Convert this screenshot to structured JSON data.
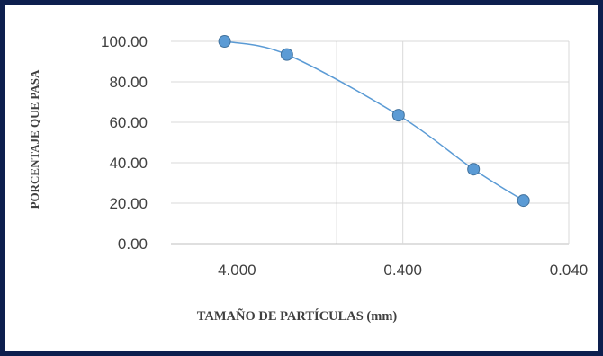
{
  "chart_data": {
    "type": "line",
    "xlabel": "TAMAÑO DE PARTÍCULAS  (mm)",
    "ylabel": "PORCENTAJE QUE PASA",
    "x_scale": "log-reversed",
    "xlim": [
      10,
      0.04
    ],
    "ylim": [
      0,
      100
    ],
    "x_ticks": [
      "4.000",
      "0.400",
      "0.040"
    ],
    "y_ticks": [
      "0.00",
      "20.00",
      "40.00",
      "60.00",
      "80.00",
      "100.00"
    ],
    "series": [
      {
        "x": [
          4.75,
          2.0,
          0.425,
          0.15,
          0.075
        ],
        "y": [
          100.0,
          93.5,
          63.5,
          36.8,
          21.3
        ]
      }
    ],
    "grid": {
      "horizontal": true,
      "vertical": true
    },
    "legend": "none",
    "colors": {
      "line": "#5b9bd5",
      "marker": "#5b9bd5",
      "marker_edge": "#41719c",
      "frame": "#0d1f4e",
      "grid": "#d9d9d9"
    }
  }
}
